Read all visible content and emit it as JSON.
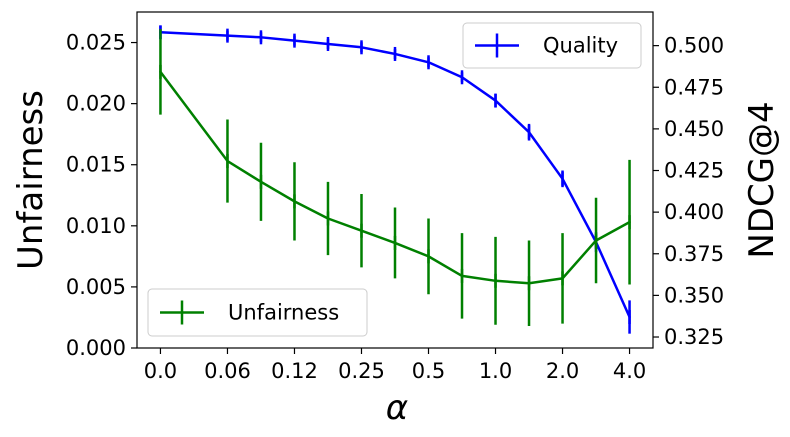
{
  "chart_data": {
    "type": "line",
    "title": "",
    "xlabel": "α",
    "ylabel_left": "Unfairness",
    "ylabel_right": "NDCG@4",
    "x_tick_labels": [
      "0.0",
      "0.06",
      "0.12",
      "0.25",
      "0.5",
      "1.0",
      "2.0",
      "4.0"
    ],
    "y_left_ticks": [
      "0.000",
      "0.005",
      "0.010",
      "0.015",
      "0.020",
      "0.025"
    ],
    "y_left_lim": [
      0,
      0.0275
    ],
    "y_right_ticks": [
      "0.325",
      "0.350",
      "0.375",
      "0.400",
      "0.425",
      "0.450",
      "0.475",
      "0.500"
    ],
    "y_right_lim": [
      0.3184,
      0.5202
    ],
    "series": [
      {
        "name": "Quality",
        "axis": "right",
        "color": "#0000ff",
        "x": [
          0,
          1,
          1.5,
          2,
          2.5,
          3,
          3.5,
          4,
          4.5,
          5,
          5.5,
          6,
          6.5,
          7
        ],
        "values": [
          0.508,
          0.506,
          0.505,
          0.503,
          0.501,
          0.499,
          0.495,
          0.49,
          0.481,
          0.467,
          0.448,
          0.42,
          0.382,
          0.337
        ],
        "errors": [
          0.004,
          0.003,
          0.003,
          0.003,
          0.003,
          0.003,
          0.003,
          0.003,
          0.003,
          0.004,
          0.005,
          0.005,
          0.006,
          0.01
        ]
      },
      {
        "name": "Unfairness",
        "axis": "left",
        "color": "#008000",
        "x": [
          0,
          1,
          1.5,
          2,
          2.5,
          3,
          3.5,
          4,
          4.5,
          5,
          5.5,
          6,
          6.5,
          7
        ],
        "values": [
          0.0226,
          0.0153,
          0.0136,
          0.012,
          0.0106,
          0.0096,
          0.0086,
          0.0075,
          0.0059,
          0.0055,
          0.0053,
          0.0057,
          0.0088,
          0.0103
        ],
        "errors": [
          0.0035,
          0.0034,
          0.0032,
          0.0032,
          0.003,
          0.003,
          0.0029,
          0.0031,
          0.0035,
          0.0036,
          0.0035,
          0.0037,
          0.0035,
          0.0051
        ]
      }
    ],
    "legends": [
      {
        "series": "Quality",
        "label": "Quality",
        "placement": "upper right"
      },
      {
        "series": "Unfairness",
        "label": "Unfairness",
        "placement": "lower left"
      }
    ],
    "grid": false
  }
}
